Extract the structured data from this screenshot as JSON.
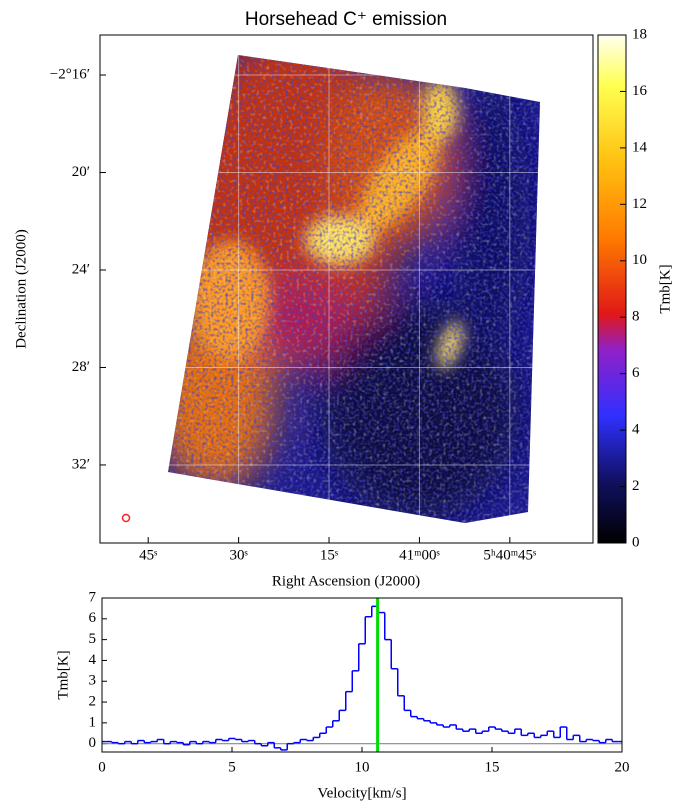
{
  "chart_data": [
    {
      "type": "image",
      "title": "Horsehead C⁺ emission",
      "xlabel": "Right Ascension (J2000)",
      "ylabel": "Declination (J2000)",
      "xlim": [
        113,
        31.2
      ],
      "xticks": [
        {
          "value": 105,
          "label": "45ˢ"
        },
        {
          "value": 90,
          "label": "30ˢ"
        },
        {
          "value": 75,
          "label": "15ˢ"
        },
        {
          "value": 60,
          "label": "41ᵐ00ˢ"
        },
        {
          "value": 45,
          "label": "5ʰ40ᵐ45ˢ"
        }
      ],
      "ylim": [
        -2.2393,
        -2.5867
      ],
      "yticks": [
        {
          "value": -2.26667,
          "label": "−2°16′"
        },
        {
          "value": -2.33333,
          "label": "20′"
        },
        {
          "value": -2.4,
          "label": "24′"
        },
        {
          "value": -2.46667,
          "label": "28′"
        },
        {
          "value": -2.53333,
          "label": "32′"
        }
      ],
      "grid": true,
      "colorbar": {
        "label": "Tmb[K]",
        "lim": [
          0,
          18
        ],
        "ticks": [
          0,
          2,
          4,
          6,
          8,
          10,
          12,
          14,
          16,
          18
        ]
      }
    },
    {
      "type": "line",
      "xlabel": "Velocity[km/s]",
      "ylabel": "Tmb[K]",
      "x": [
        0,
        0.25,
        0.5,
        0.75,
        1,
        1.25,
        1.5,
        1.75,
        2,
        2.25,
        2.5,
        2.75,
        3,
        3.25,
        3.5,
        3.75,
        4,
        4.25,
        4.5,
        4.75,
        5,
        5.25,
        5.5,
        5.75,
        6,
        6.25,
        6.5,
        6.75,
        7,
        7.25,
        7.5,
        7.75,
        8,
        8.25,
        8.5,
        8.75,
        9,
        9.25,
        9.5,
        9.75,
        10,
        10.25,
        10.5,
        10.75,
        11,
        11.25,
        11.5,
        11.75,
        12,
        12.25,
        12.5,
        12.75,
        13,
        13.25,
        13.5,
        13.75,
        14,
        14.25,
        14.5,
        14.75,
        15,
        15.25,
        15.5,
        15.75,
        16,
        16.25,
        16.5,
        16.75,
        17,
        17.25,
        17.5,
        17.75,
        18,
        18.25,
        18.5,
        18.75,
        19,
        19.25,
        19.5,
        19.75,
        20
      ],
      "series": [
        {
          "color": "#0000ff",
          "values": [
            0.1,
            0.1,
            0.05,
            0.0,
            0.1,
            0.0,
            0.15,
            0.05,
            0.1,
            0.2,
            0.0,
            0.1,
            0.05,
            -0.05,
            0.1,
            0.0,
            0.1,
            0.05,
            0.2,
            0.15,
            0.25,
            0.2,
            0.1,
            0.15,
            0.0,
            -0.1,
            0.05,
            -0.2,
            -0.3,
            0.0,
            0.05,
            0.2,
            0.15,
            0.3,
            0.5,
            0.8,
            1.1,
            1.6,
            2.5,
            3.5,
            4.8,
            6.1,
            6.6,
            6.3,
            5.0,
            3.6,
            2.3,
            1.6,
            1.3,
            1.2,
            1.1,
            1.0,
            0.9,
            0.8,
            0.9,
            0.7,
            0.6,
            0.7,
            0.5,
            0.6,
            0.8,
            0.7,
            0.6,
            0.5,
            0.7,
            0.4,
            0.5,
            0.3,
            0.4,
            0.6,
            0.3,
            0.8,
            0.2,
            0.4,
            0.1,
            0.2,
            0.15,
            0.05,
            0.2,
            0.1,
            0.1
          ]
        }
      ],
      "xlim": [
        0,
        20
      ],
      "xticks": [
        0,
        5,
        10,
        15,
        20
      ],
      "ylim": [
        -0.4,
        7
      ],
      "yticks": [
        0,
        1,
        2,
        3,
        4,
        5,
        6,
        7
      ],
      "vline": {
        "x": 10.6,
        "color": "#00dd00"
      },
      "hline": 0
    }
  ]
}
